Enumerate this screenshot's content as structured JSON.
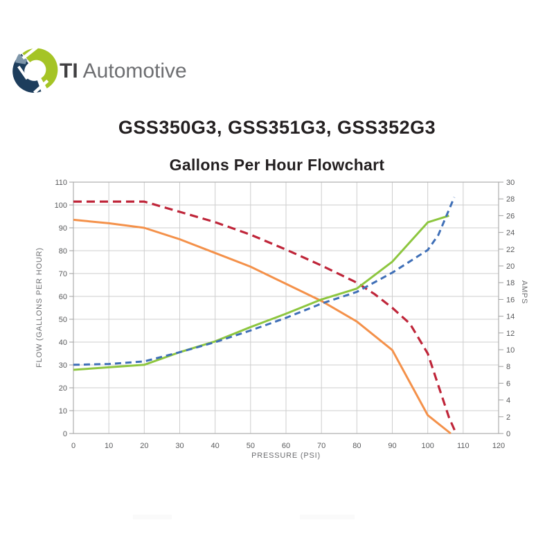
{
  "logo": {
    "brand_bold": "TI",
    "brand_rest": "Automotive",
    "colors": {
      "lime": "#a5c425",
      "navy": "#1d3d5c",
      "steel": "#7e96aa"
    }
  },
  "page_title": "GSS350G3, GSS351G3, GSS352G3",
  "chart_data": {
    "type": "line",
    "title": "Gallons Per Hour Flowchart",
    "xlabel": "PRESSURE (PSI)",
    "ylabel_left": "FLOW (GALLONS PER HOUR)",
    "ylabel_right": "AMPS",
    "xlim": [
      0,
      120
    ],
    "ylim_left": [
      0,
      110
    ],
    "ylim_right": [
      0,
      30
    ],
    "x_ticks": [
      0,
      10,
      20,
      30,
      40,
      50,
      60,
      70,
      80,
      90,
      100,
      110,
      120
    ],
    "y_left_ticks": [
      0,
      10,
      20,
      30,
      40,
      50,
      60,
      70,
      80,
      90,
      100,
      110
    ],
    "y_right_ticks": [
      0,
      2,
      4,
      6,
      8,
      10,
      12,
      14,
      16,
      18,
      20,
      22,
      24,
      26,
      28,
      30
    ],
    "grid": true,
    "legend": "none",
    "colors": {
      "grid": "#cdcdcd",
      "frame": "#adadad",
      "tick": "#9e9e9e",
      "tick_text": "#58595b"
    },
    "series": [
      {
        "name": "flow-red-dashed",
        "axis": "left",
        "style": "dashed",
        "dash": [
          12,
          7
        ],
        "width": 3.2,
        "color": "#bf2539",
        "x": [
          0,
          10,
          20,
          30,
          40,
          50,
          60,
          70,
          80,
          85,
          90,
          95,
          100,
          103,
          106,
          108
        ],
        "y": [
          101.5,
          101.5,
          101.5,
          97,
          92.5,
          87,
          80.5,
          73.5,
          66,
          61,
          55,
          48,
          35,
          21,
          7,
          0
        ]
      },
      {
        "name": "flow-orange-solid",
        "axis": "left",
        "style": "solid",
        "dash": null,
        "width": 3,
        "color": "#f4914a",
        "x": [
          0,
          10,
          20,
          30,
          40,
          50,
          60,
          70,
          80,
          90,
          100,
          106.5
        ],
        "y": [
          93.5,
          92,
          90,
          85,
          79,
          73,
          65.5,
          58,
          49,
          36.5,
          8,
          0
        ]
      },
      {
        "name": "amps-green-solid",
        "axis": "right",
        "style": "solid",
        "dash": null,
        "width": 3,
        "color": "#8dc63f",
        "x": [
          0,
          10,
          20,
          30,
          40,
          50,
          60,
          70,
          80,
          90,
          100,
          106
        ],
        "y": [
          7.6,
          7.9,
          8.2,
          9.7,
          11.0,
          12.7,
          14.3,
          16.0,
          17.3,
          20.5,
          25.2,
          26.0
        ]
      },
      {
        "name": "amps-blue-dashed",
        "axis": "right",
        "style": "dashed",
        "dash": [
          9,
          6
        ],
        "width": 3,
        "color": "#3f6fb7",
        "x": [
          0,
          10,
          20,
          30,
          40,
          50,
          60,
          70,
          80,
          90,
          100,
          103,
          107.5
        ],
        "y": [
          8.2,
          8.3,
          8.6,
          9.7,
          10.9,
          12.3,
          13.8,
          15.5,
          16.9,
          19.2,
          21.9,
          23.7,
          28.2
        ]
      }
    ]
  }
}
